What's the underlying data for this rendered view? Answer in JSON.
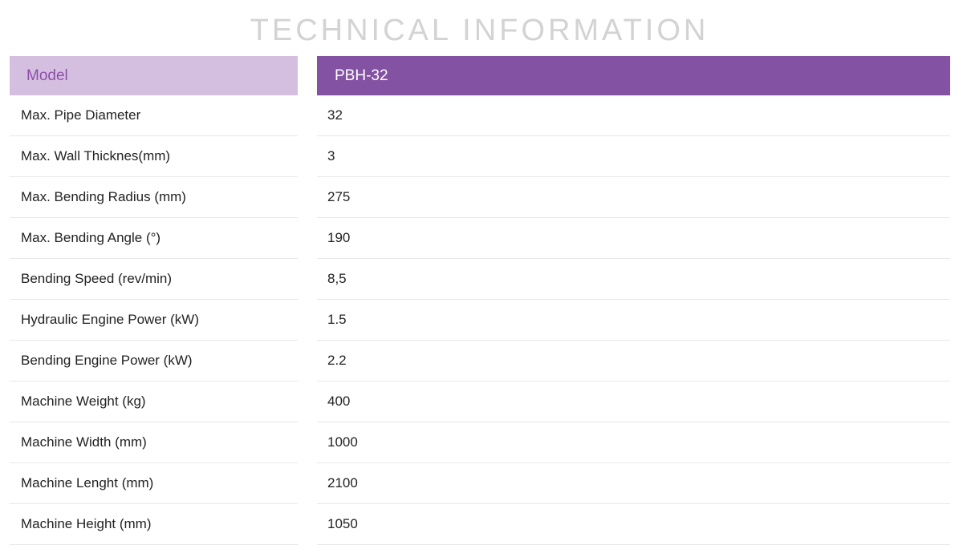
{
  "title": "TECHNICAL INFORMATION",
  "table": {
    "header": {
      "label": "Model",
      "value": "PBH-32"
    },
    "rows": [
      {
        "label": "Max. Pipe Diameter",
        "value": "32"
      },
      {
        "label": "Max. Wall Thicknes(mm)",
        "value": "3"
      },
      {
        "label": "Max. Bending Radius (mm)",
        "value": "275"
      },
      {
        "label": "Max. Bending Angle (°)",
        "value": "190"
      },
      {
        "label": "Bending Speed (rev/min)",
        "value": "8,5"
      },
      {
        "label": "Hydraulic Engine Power (kW)",
        "value": "1.5"
      },
      {
        "label": "Bending Engine Power (kW)",
        "value": "2.2"
      },
      {
        "label": "Machine Weight (kg)",
        "value": "400"
      },
      {
        "label": "Machine Width (mm)",
        "value": "1000"
      },
      {
        "label": "Machine Lenght (mm)",
        "value": "2100"
      },
      {
        "label": "Machine Height (mm)",
        "value": "1050"
      }
    ]
  },
  "colors": {
    "header_label_bg": "#d5bfe0",
    "header_label_text": "#8c4ea8",
    "header_value_bg": "#8452a3",
    "header_value_text": "#ffffff",
    "title_text": "#d3d3d3"
  }
}
